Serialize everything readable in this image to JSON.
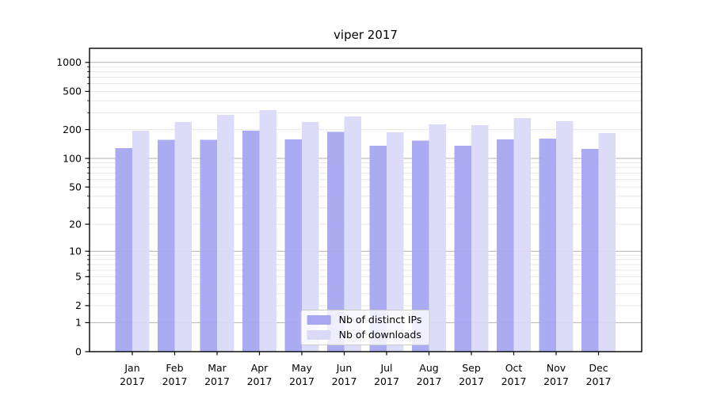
{
  "chart_data": {
    "type": "bar",
    "title": "viper 2017",
    "categories": [
      "Jan 2017",
      "Feb 2017",
      "Mar 2017",
      "Apr 2017",
      "May 2017",
      "Jun 2017",
      "Jul 2017",
      "Aug 2017",
      "Sep 2017",
      "Oct 2017",
      "Nov 2017",
      "Dec 2017"
    ],
    "series": [
      {
        "name": "Nb of distinct IPs",
        "color": "#a6a6f1",
        "values": [
          128,
          156,
          156,
          195,
          158,
          190,
          136,
          153,
          136,
          158,
          161,
          126
        ]
      },
      {
        "name": "Nb of downloads",
        "color": "#dadaf8",
        "values": [
          195,
          240,
          285,
          320,
          240,
          275,
          188,
          227,
          223,
          264,
          245,
          184
        ]
      }
    ],
    "xlabel": "",
    "ylabel": "",
    "yscale": "log1p",
    "yticks": [
      0,
      1,
      2,
      5,
      10,
      20,
      50,
      100,
      200,
      500,
      1000
    ],
    "ylim": [
      0,
      1400
    ],
    "grid": "major+minor",
    "legend_position": "lower center"
  },
  "colors": {
    "major_grid": "#b2b2b2",
    "minor_grid": "#e7e7e7",
    "axis": "#000000",
    "text": "#000000",
    "legend_border": "#cccccc"
  }
}
